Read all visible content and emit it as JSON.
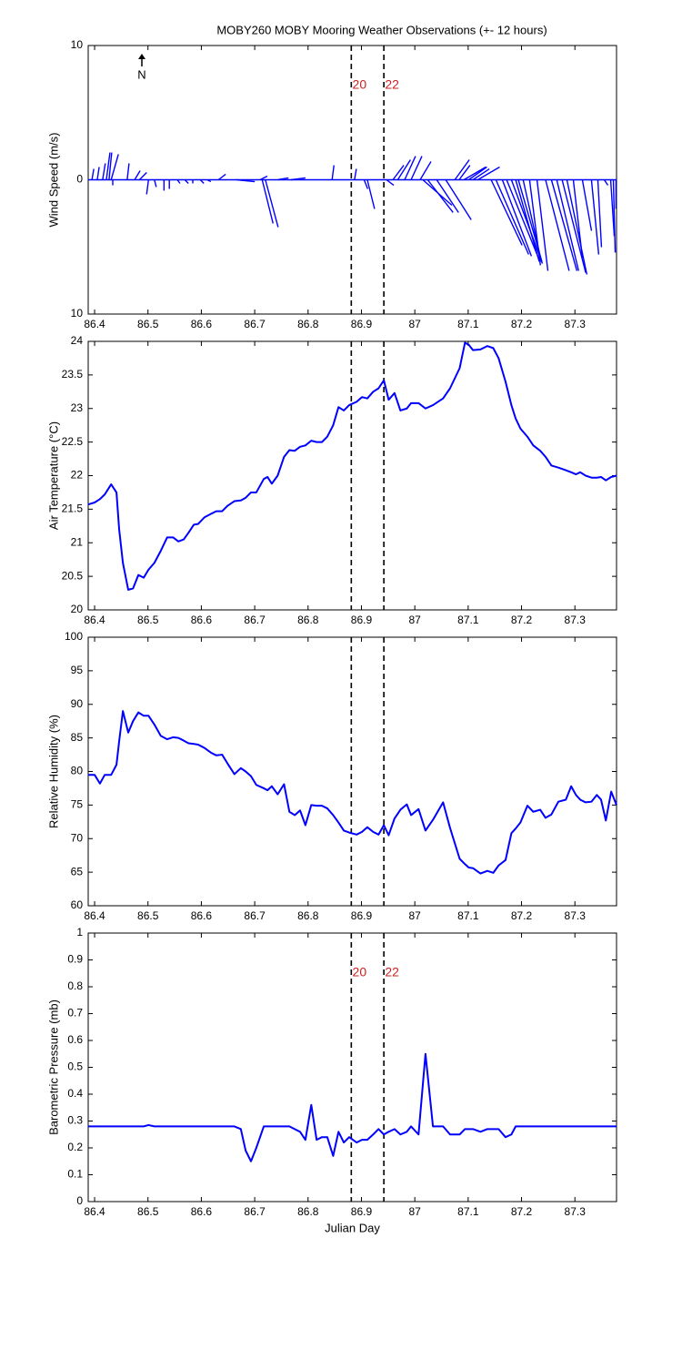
{
  "chart_data": [
    {
      "type": "feather",
      "title": "MOBY260 MOBY Mooring Weather Observations (+- 12 hours)",
      "ylabel": "Wind Speed (m/s)",
      "north_label": "N",
      "xlim": [
        86.388,
        87.378
      ],
      "xticks": [
        86.4,
        86.5,
        86.6,
        86.7,
        86.8,
        86.9,
        87,
        87.1,
        87.2,
        87.3
      ],
      "ylim": [
        -10,
        10
      ],
      "yticks": [
        {
          "value": -10,
          "label": "10"
        },
        0,
        10
      ],
      "vlines": [
        86.881,
        86.942
      ],
      "vline_labels": [
        "20",
        "22"
      ],
      "vline_label_color": "#cc2222",
      "color": "#0000ff",
      "series": [
        {
          "x": [
            86.395,
            86.405,
            86.415,
            86.422,
            86.427,
            86.431,
            86.434,
            86.461,
            86.475,
            86.484,
            86.501,
            86.512,
            86.53,
            86.54,
            86.555,
            86.569,
            86.584,
            86.598,
            86.611,
            86.632,
            86.666,
            86.71,
            86.714,
            86.72,
            86.743,
            86.768,
            86.845,
            86.887,
            86.905,
            86.911,
            86.947,
            86.959,
            86.968,
            86.981,
            86.993,
            87.01,
            87.015,
            87.024,
            87.041,
            87.058,
            87.075,
            87.083,
            87.092,
            87.101,
            87.109,
            87.118,
            87.143,
            87.152,
            87.164,
            87.172,
            87.181,
            87.189,
            87.194,
            87.203,
            87.215,
            87.229,
            87.245,
            87.256,
            87.266,
            87.276,
            87.285,
            87.297,
            87.314,
            87.331,
            87.343,
            87.355,
            87.367,
            87.372,
            87.377
          ],
          "u": [
            0.14,
            0.14,
            0.2,
            0.27,
            0.2,
            0.54,
            0,
            0.14,
            0.41,
            0.54,
            -0.14,
            0.14,
            0,
            0,
            0.2,
            0.27,
            0,
            0.27,
            0.27,
            0.54,
            1.36,
            0.54,
            0.81,
            0.95,
            0.81,
            1.08,
            0.14,
            0.14,
            0.27,
            0.54,
            0.54,
            0.81,
            0.95,
            0.81,
            0.81,
            0.81,
            2.17,
            1.9,
            1.63,
            1.9,
            1.08,
            0.81,
            1.63,
            1.36,
            1.22,
            1.63,
            2.31,
            2.44,
            2.17,
            2.44,
            2.31,
            1.76,
            1.76,
            1.36,
            0.81,
            0.81,
            1.76,
            1.9,
            1.63,
            1.76,
            1.49,
            0.68,
            0.68,
            0.54,
            0.27,
            0.27,
            0.27,
            0.14,
            0
          ],
          "v": [
            0.81,
            0.95,
            1.22,
            2.03,
            2.03,
            1.9,
            -0.41,
            1.22,
            0.68,
            0.54,
            -1.08,
            -0.54,
            -0.81,
            -0.68,
            -0.27,
            -0.27,
            -0.27,
            -0.27,
            -0.14,
            0.41,
            -0.14,
            0.27,
            -3.25,
            -3.53,
            0.14,
            0.14,
            1.08,
            0.81,
            -0.68,
            -2.17,
            -0.41,
            1.08,
            1.49,
            1.76,
            1.76,
            1.36,
            -1.9,
            -2.44,
            -2.44,
            -2.98,
            1.49,
            1.08,
            0.95,
            0.95,
            0.81,
            0.95,
            -4.88,
            -5.56,
            -5.69,
            -5.97,
            -6.24,
            -6.1,
            -6.1,
            -6.1,
            -6.37,
            -6.78,
            -6.78,
            -6.78,
            -6.78,
            -6.92,
            -7.05,
            -5.83,
            -3.8,
            -5.56,
            -5.02,
            -0.41,
            -4.2,
            -5.42,
            -2.17
          ]
        }
      ]
    },
    {
      "type": "line",
      "ylabel": "Air Temperature (°C)",
      "xlim": [
        86.388,
        87.378
      ],
      "xticks": [
        86.4,
        86.5,
        86.6,
        86.7,
        86.8,
        86.9,
        87,
        87.1,
        87.2,
        87.3
      ],
      "ylim": [
        20,
        24
      ],
      "yticks": [
        20,
        20.5,
        21,
        21.5,
        22,
        22.5,
        23,
        23.5,
        24
      ],
      "vlines": [
        86.881,
        86.942
      ],
      "color": "#0000ff",
      "x": [
        86.388,
        86.4,
        86.41,
        86.419,
        86.431,
        86.441,
        86.446,
        86.453,
        86.463,
        86.472,
        86.482,
        86.492,
        86.501,
        86.512,
        86.524,
        86.536,
        86.547,
        86.557,
        86.567,
        86.576,
        86.586,
        86.594,
        86.606,
        86.618,
        86.628,
        86.639,
        86.649,
        86.662,
        86.674,
        86.683,
        86.693,
        86.703,
        86.717,
        86.724,
        86.732,
        86.743,
        86.755,
        86.765,
        86.775,
        86.785,
        86.795,
        86.806,
        86.816,
        86.826,
        86.836,
        86.847,
        86.857,
        86.867,
        86.877,
        86.891,
        86.901,
        86.911,
        86.922,
        86.932,
        86.942,
        86.951,
        86.962,
        86.973,
        86.985,
        86.993,
        87.007,
        87.02,
        87.034,
        87.053,
        87.066,
        87.084,
        87.094,
        87.101,
        87.109,
        87.123,
        87.136,
        87.147,
        87.157,
        87.17,
        87.181,
        87.189,
        87.198,
        87.211,
        87.222,
        87.235,
        87.245,
        87.256,
        87.269,
        87.283,
        87.293,
        87.302,
        87.31,
        87.32,
        87.331,
        87.341,
        87.349,
        87.358,
        87.368,
        87.378
      ],
      "values": [
        21.57,
        21.6,
        21.65,
        21.72,
        21.87,
        21.75,
        21.2,
        20.7,
        20.3,
        20.32,
        20.52,
        20.48,
        20.6,
        20.7,
        20.88,
        21.08,
        21.08,
        21.02,
        21.05,
        21.15,
        21.27,
        21.28,
        21.38,
        21.43,
        21.47,
        21.47,
        21.55,
        21.62,
        21.63,
        21.67,
        21.75,
        21.75,
        21.95,
        21.98,
        21.88,
        22,
        22.28,
        22.38,
        22.37,
        22.43,
        22.45,
        22.52,
        22.5,
        22.5,
        22.58,
        22.75,
        23.02,
        22.97,
        23.05,
        23.1,
        23.17,
        23.15,
        23.25,
        23.3,
        23.42,
        23.13,
        23.23,
        22.97,
        23,
        23.08,
        23.08,
        23,
        23.05,
        23.15,
        23.3,
        23.6,
        23.98,
        23.95,
        23.87,
        23.88,
        23.93,
        23.9,
        23.75,
        23.4,
        23.05,
        22.85,
        22.7,
        22.58,
        22.45,
        22.37,
        22.28,
        22.15,
        22.12,
        22.08,
        22.05,
        22.02,
        22.05,
        22,
        21.97,
        21.97,
        21.98,
        21.93,
        21.98,
        22
      ]
    },
    {
      "type": "line",
      "ylabel": "Relative Humidity (%)",
      "xlim": [
        86.388,
        87.378
      ],
      "xticks": [
        86.4,
        86.5,
        86.6,
        86.7,
        86.8,
        86.9,
        87,
        87.1,
        87.2,
        87.3
      ],
      "ylim": [
        60,
        100
      ],
      "yticks": [
        60,
        65,
        70,
        75,
        80,
        85,
        90,
        95,
        100
      ],
      "vlines": [
        86.881,
        86.942
      ],
      "color": "#0000ff",
      "x": [
        86.388,
        86.4,
        86.41,
        86.419,
        86.431,
        86.441,
        86.446,
        86.453,
        86.463,
        86.472,
        86.482,
        86.492,
        86.501,
        86.512,
        86.524,
        86.536,
        86.547,
        86.557,
        86.567,
        86.576,
        86.586,
        86.594,
        86.606,
        86.618,
        86.628,
        86.639,
        86.649,
        86.662,
        86.674,
        86.683,
        86.693,
        86.703,
        86.717,
        86.724,
        86.732,
        86.743,
        86.755,
        86.765,
        86.775,
        86.785,
        86.795,
        86.806,
        86.816,
        86.826,
        86.836,
        86.847,
        86.857,
        86.867,
        86.877,
        86.891,
        86.901,
        86.911,
        86.922,
        86.932,
        86.942,
        86.951,
        86.962,
        86.973,
        86.985,
        86.993,
        87.007,
        87.02,
        87.034,
        87.053,
        87.066,
        87.084,
        87.094,
        87.101,
        87.109,
        87.123,
        87.136,
        87.147,
        87.157,
        87.17,
        87.181,
        87.189,
        87.198,
        87.211,
        87.222,
        87.235,
        87.245,
        87.256,
        87.269,
        87.283,
        87.293,
        87.302,
        87.31,
        87.32,
        87.331,
        87.341,
        87.349,
        87.358,
        87.368,
        87.378
      ],
      "values": [
        79.5,
        79.5,
        78.2,
        79.5,
        79.5,
        81,
        84.5,
        89,
        85.8,
        87.5,
        88.8,
        88.3,
        88.3,
        87,
        85.3,
        84.8,
        85.1,
        85,
        84.6,
        84.2,
        84.1,
        84,
        83.5,
        82.8,
        82.4,
        82.5,
        81.2,
        79.6,
        80.5,
        80,
        79.3,
        78,
        77.5,
        77.2,
        77.8,
        76.6,
        78.1,
        74,
        73.5,
        74.2,
        72,
        75,
        74.9,
        74.9,
        74.5,
        73.5,
        72.4,
        71.2,
        70.9,
        70.6,
        71,
        71.7,
        71,
        70.6,
        72,
        70.5,
        73,
        74.3,
        75.1,
        73.5,
        74.4,
        71.2,
        72.8,
        75.4,
        71.6,
        67,
        66.2,
        65.7,
        65.6,
        64.8,
        65.2,
        64.9,
        66,
        66.8,
        70.8,
        71.5,
        72.4,
        74.9,
        74,
        74.3,
        73.1,
        73.6,
        75.5,
        75.8,
        77.8,
        76.5,
        75.8,
        75.4,
        75.5,
        76.5,
        75.8,
        72.7,
        77,
        75
      ]
    },
    {
      "type": "line",
      "ylabel": "Barometric Pressure (mb)",
      "xlabel": "Julian Day",
      "xlim": [
        86.388,
        87.378
      ],
      "xticks": [
        86.4,
        86.5,
        86.6,
        86.7,
        86.8,
        86.9,
        87,
        87.1,
        87.2,
        87.3
      ],
      "ylim": [
        0,
        1
      ],
      "yticks": [
        0,
        0.1,
        0.2,
        0.3,
        0.4,
        0.5,
        0.6,
        0.7,
        0.8,
        0.9,
        1
      ],
      "vlines": [
        86.881,
        86.942
      ],
      "vline_labels": [
        "20",
        "22"
      ],
      "vline_label_color": "#cc2222",
      "color": "#0000ff",
      "x": [
        86.388,
        86.4,
        86.41,
        86.419,
        86.431,
        86.441,
        86.446,
        86.453,
        86.463,
        86.472,
        86.482,
        86.492,
        86.501,
        86.512,
        86.524,
        86.536,
        86.547,
        86.557,
        86.567,
        86.576,
        86.586,
        86.594,
        86.606,
        86.618,
        86.628,
        86.639,
        86.649,
        86.662,
        86.674,
        86.683,
        86.693,
        86.703,
        86.717,
        86.724,
        86.732,
        86.743,
        86.755,
        86.765,
        86.775,
        86.785,
        86.795,
        86.806,
        86.816,
        86.826,
        86.836,
        86.847,
        86.857,
        86.867,
        86.877,
        86.891,
        86.901,
        86.911,
        86.922,
        86.932,
        86.942,
        86.951,
        86.962,
        86.973,
        86.985,
        86.993,
        87.007,
        87.02,
        87.034,
        87.053,
        87.066,
        87.084,
        87.094,
        87.101,
        87.109,
        87.123,
        87.136,
        87.147,
        87.157,
        87.17,
        87.181,
        87.189,
        87.198,
        87.211,
        87.222,
        87.235,
        87.245,
        87.256,
        87.269,
        87.283,
        87.293,
        87.302,
        87.31,
        87.32,
        87.331,
        87.341,
        87.349,
        87.358,
        87.368,
        87.378
      ],
      "values": [
        0.28,
        0.28,
        0.28,
        0.28,
        0.28,
        0.28,
        0.28,
        0.28,
        0.28,
        0.28,
        0.28,
        0.28,
        0.285,
        0.28,
        0.28,
        0.28,
        0.28,
        0.28,
        0.28,
        0.28,
        0.28,
        0.28,
        0.28,
        0.28,
        0.28,
        0.28,
        0.28,
        0.28,
        0.27,
        0.19,
        0.15,
        0.2,
        0.28,
        0.28,
        0.28,
        0.28,
        0.28,
        0.28,
        0.27,
        0.26,
        0.23,
        0.36,
        0.23,
        0.24,
        0.24,
        0.17,
        0.26,
        0.22,
        0.24,
        0.22,
        0.23,
        0.23,
        0.25,
        0.27,
        0.25,
        0.26,
        0.27,
        0.25,
        0.26,
        0.28,
        0.25,
        0.55,
        0.28,
        0.28,
        0.25,
        0.25,
        0.27,
        0.27,
        0.27,
        0.26,
        0.27,
        0.27,
        0.27,
        0.24,
        0.25,
        0.28,
        0.28,
        0.28,
        0.28,
        0.28,
        0.28,
        0.28,
        0.28,
        0.28,
        0.28,
        0.28,
        0.28,
        0.28,
        0.28,
        0.28,
        0.28,
        0.28,
        0.28,
        0.28
      ]
    }
  ]
}
